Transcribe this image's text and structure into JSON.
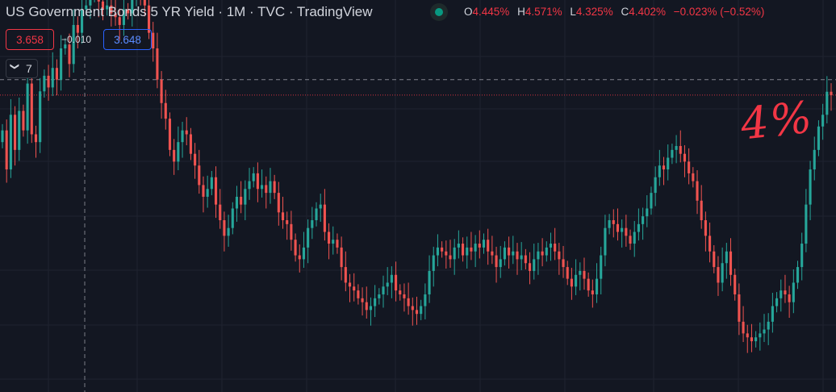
{
  "header": {
    "title": "US Government Bonds 5 YR Yield · 1M · TVC · TradingView",
    "ohlc": [
      {
        "label": "O",
        "value": "4.445%"
      },
      {
        "label": "H",
        "value": "4.571%"
      },
      {
        "label": "L",
        "value": "4.325%"
      },
      {
        "label": "C",
        "value": "4.402%"
      }
    ],
    "change": "−0.023% (−0.52%)",
    "status_icon": "market-status-dot"
  },
  "trade": {
    "sell_price": "3.658",
    "spread": "−0.010",
    "buy_price": "3.648"
  },
  "indicators": {
    "chevron_icon": "chevron-down-icon",
    "count": "7"
  },
  "annotation": {
    "text": "4%",
    "color": "#f23645"
  },
  "colors": {
    "background": "#131722",
    "up": "#26a69a",
    "down": "#ef5350",
    "grid": "#1f2330"
  },
  "chart_data": {
    "type": "candlestick",
    "interval": "1M",
    "ylim": [
      0.6,
      5.0
    ],
    "grid": true,
    "reference_lines": [
      {
        "value": 4.402,
        "style": "dotted",
        "color": "#f23645"
      },
      {
        "value": 4.6,
        "style": "dashed",
        "color": "#9598a1"
      }
    ],
    "closes": [
      3.95,
      3.45,
      4.15,
      3.7,
      4.2,
      3.95,
      4.55,
      3.9,
      3.8,
      4.45,
      4.65,
      4.5,
      4.75,
      4.6,
      5.0,
      5.05,
      4.8,
      5.3,
      5.2,
      5.5,
      5.55,
      5.7,
      5.75,
      5.6,
      5.5,
      5.55,
      5.45,
      5.4,
      5.3,
      5.5,
      5.45,
      5.65,
      5.8,
      5.75,
      5.55,
      5.2,
      5.0,
      4.6,
      4.3,
      4.1,
      3.7,
      3.55,
      3.8,
      3.95,
      3.9,
      3.65,
      3.5,
      3.25,
      3.1,
      3.2,
      3.35,
      3.0,
      2.8,
      2.6,
      2.7,
      2.95,
      3.1,
      3.0,
      3.2,
      3.3,
      3.4,
      3.2,
      3.25,
      3.15,
      3.3,
      3.15,
      2.9,
      2.8,
      2.75,
      2.55,
      2.35,
      2.3,
      2.45,
      2.7,
      2.8,
      2.95,
      3.0,
      2.65,
      2.5,
      2.55,
      2.45,
      2.2,
      2.0,
      1.95,
      1.9,
      1.8,
      1.75,
      1.65,
      1.7,
      1.8,
      1.85,
      1.95,
      2.0,
      2.1,
      1.9,
      1.85,
      1.8,
      1.7,
      1.65,
      1.6,
      1.7,
      1.85,
      2.15,
      2.35,
      2.45,
      2.4,
      2.35,
      2.3,
      2.45,
      2.5,
      2.35,
      2.45,
      2.4,
      2.5,
      2.45,
      2.55,
      2.4,
      2.35,
      2.2,
      2.3,
      2.45,
      2.35,
      2.4,
      2.3,
      2.35,
      2.25,
      2.15,
      2.3,
      2.4,
      2.35,
      2.45,
      2.5,
      2.4,
      2.3,
      2.2,
      2.05,
      1.95,
      2.1,
      2.15,
      2.05,
      1.9,
      1.85,
      2.05,
      2.35,
      2.7,
      2.8,
      2.75,
      2.65,
      2.7,
      2.6,
      2.5,
      2.65,
      2.75,
      2.85,
      2.95,
      3.15,
      3.35,
      3.5,
      3.45,
      3.6,
      3.7,
      3.75,
      3.65,
      3.55,
      3.4,
      3.3,
      3.05,
      2.8,
      2.6,
      2.4,
      2.2,
      2.0,
      2.25,
      2.4,
      2.1,
      1.85,
      1.5,
      1.35,
      1.3,
      1.25,
      1.3,
      1.35,
      1.4,
      1.5,
      1.7,
      1.8,
      1.9,
      1.85,
      1.75,
      2.0,
      2.2,
      2.5,
      3.0,
      3.45,
      3.7,
      4.0,
      4.15,
      4.445,
      4.402
    ]
  }
}
